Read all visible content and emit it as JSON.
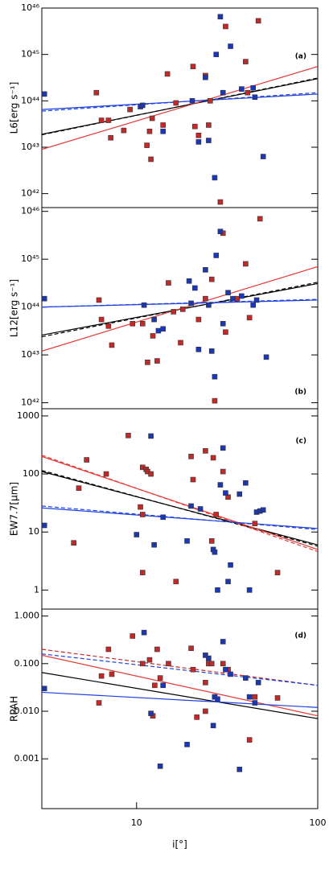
{
  "chart_data": [
    {
      "type": "scatter",
      "label": "(a)",
      "ylabel": "L6[erg s⁻¹]",
      "log_y": true,
      "log_x": true,
      "xlim": [
        3,
        100
      ],
      "ylim": [
        5e+41,
        1e+46
      ],
      "yticks": [
        {
          "value": 1e+42,
          "label": "10⁴²"
        },
        {
          "value": 1e+43,
          "label": "10⁴³"
        },
        {
          "value": 1e+44,
          "label": "10⁴⁴"
        },
        {
          "value": 1e+45,
          "label": "10⁴⁵"
        },
        {
          "value": 1e+46,
          "label": "10⁴⁶"
        }
      ],
      "series": [
        {
          "color": "#c62828",
          "x": [
            6.0,
            6.4,
            7.0,
            7.2,
            8.5,
            9.2,
            11.4,
            11.8,
            12.0,
            12.2,
            14.0,
            14.8,
            16.5,
            20.5,
            21,
            22,
            24,
            25,
            25.5,
            29,
            31,
            40,
            41,
            47
          ],
          "values": [
            1.5e+44,
            3.8e+43,
            3.8e+43,
            1.6e+43,
            2.3e+43,
            6.5e+43,
            1.1e+43,
            2.2e+43,
            5.5e+42,
            4.2e+43,
            3e+43,
            3.8e+44,
            9e+43,
            5.5e+44,
            2.8e+43,
            1.8e+43,
            3.5e+44,
            3e+43,
            1e+44,
            6.6e+41,
            4e+45,
            7e+44,
            1.5e+44,
            5.3e+45
          ]
        },
        {
          "color": "#1a37b8",
          "x": [
            3.1,
            10.5,
            10.8,
            14,
            20.3,
            22,
            24,
            25,
            27,
            27.5,
            29,
            30,
            33,
            38,
            44,
            45,
            50
          ],
          "values": [
            1.4e+44,
            7.5e+43,
            8e+43,
            2.2e+43,
            1e+44,
            1.3e+43,
            3.2e+44,
            1.4e+43,
            2.2e+42,
            1e+45,
            6.5e+45,
            1.5e+44,
            1.5e+45,
            1.8e+44,
            1.9e+44,
            1.2e+44,
            6.3e+42
          ]
        }
      ],
      "lines": [
        {
          "color": "#000000",
          "dash": false,
          "x": [
            3,
            100
          ],
          "values": [
            1.9e+43,
            3e+44
          ]
        },
        {
          "color": "#000000",
          "dash": true,
          "x": [
            3,
            100
          ],
          "values": [
            1.85e+43,
            3.1e+44
          ]
        },
        {
          "color": "#e53935",
          "dash": false,
          "x": [
            3,
            100
          ],
          "values": [
            9e+42,
            5.5e+44
          ]
        },
        {
          "color": "#1e40e0",
          "dash": true,
          "x": [
            3,
            100
          ],
          "values": [
            6e+43,
            1.5e+44
          ]
        },
        {
          "color": "#1e40e0",
          "dash": false,
          "x": [
            3,
            100
          ],
          "values": [
            6.5e+43,
            1.4e+44
          ]
        }
      ]
    },
    {
      "type": "scatter",
      "label": "(b)",
      "ylabel": "L12[erg s⁻¹]",
      "log_y": true,
      "log_x": true,
      "xlim": [
        3,
        100
      ],
      "ylim": [
        7.5e+41,
        1.2e+46
      ],
      "yticks": [
        {
          "value": 1e+42,
          "label": "10⁴²"
        },
        {
          "value": 1e+43,
          "label": "10⁴³"
        },
        {
          "value": 1e+44,
          "label": "10⁴⁴"
        },
        {
          "value": 1e+45,
          "label": "10⁴⁵"
        },
        {
          "value": 1e+46,
          "label": "10⁴⁶"
        }
      ],
      "series": [
        {
          "color": "#c62828",
          "x": [
            6.2,
            6.4,
            7,
            7.3,
            9.5,
            10.8,
            11.5,
            12.3,
            13,
            15,
            16,
            17.5,
            18,
            22,
            24,
            26,
            27,
            30,
            31,
            36,
            40,
            42,
            48
          ],
          "values": [
            1.4e+44,
            5.5e+43,
            4e+43,
            1.6e+43,
            4.5e+43,
            4.5e+43,
            7e+42,
            2.5e+43,
            7.5e+42,
            3.2e+44,
            8e+43,
            1.8e+43,
            9e+43,
            5.5e+43,
            1.5e+44,
            3.8e+44,
            1.1e+42,
            3.5e+45,
            3e+43,
            1.5e+44,
            8e+44,
            6e+43,
            7e+45
          ]
        },
        {
          "color": "#1a37b8",
          "x": [
            3.1,
            11,
            12.5,
            13.2,
            14,
            19.5,
            20,
            21,
            22,
            24,
            25,
            26,
            27,
            27.5,
            29,
            30,
            32,
            34,
            38,
            44,
            46,
            52
          ],
          "values": [
            1.5e+44,
            1.1e+44,
            5.5e+43,
            3.2e+43,
            3.5e+43,
            3.5e+44,
            1.2e+44,
            2.5e+44,
            1.3e+43,
            6e+44,
            1.1e+44,
            1.2e+43,
            3.5e+42,
            1.2e+45,
            3.8e+45,
            4.5e+43,
            2e+44,
            1.5e+44,
            1.7e+44,
            1.1e+44,
            1.4e+44,
            9e+42
          ]
        }
      ],
      "lines": [
        {
          "color": "#000000",
          "dash": false,
          "x": [
            3,
            100
          ],
          "values": [
            2.6e+43,
            3.1e+44
          ]
        },
        {
          "color": "#000000",
          "dash": true,
          "x": [
            3,
            100
          ],
          "values": [
            2.4e+43,
            3.3e+44
          ]
        },
        {
          "color": "#e53935",
          "dash": false,
          "x": [
            3,
            100
          ],
          "values": [
            1.2e+43,
            7e+44
          ]
        },
        {
          "color": "#1e40e0",
          "dash": true,
          "x": [
            3,
            100
          ],
          "values": [
            1e+44,
            1.45e+44
          ]
        },
        {
          "color": "#1e40e0",
          "dash": false,
          "x": [
            3,
            100
          ],
          "values": [
            1e+44,
            1.4e+44
          ]
        }
      ]
    },
    {
      "type": "scatter",
      "label": "(c)",
      "ylabel": "EW7.7[μm]",
      "log_y": true,
      "log_x": true,
      "xlim": [
        3,
        100
      ],
      "ylim": [
        0.47,
        1330
      ],
      "yticks": [
        1,
        10,
        100,
        1000
      ],
      "series": [
        {
          "color": "#c62828",
          "x": [
            4.5,
            4.8,
            5.3,
            6.8,
            9.0,
            10.5,
            10.8,
            10.8,
            10.8,
            11.3,
            11.5,
            12,
            16.5,
            20,
            20.5,
            24,
            26,
            26.5,
            27.5,
            30,
            32,
            45,
            60
          ],
          "values": [
            6.5,
            57,
            175,
            100,
            460,
            27,
            130,
            20,
            2,
            120,
            110,
            100,
            1.4,
            200,
            80,
            250,
            7,
            190,
            20,
            110,
            40,
            14,
            2
          ]
        },
        {
          "color": "#1a37b8",
          "x": [
            3.1,
            10,
            12,
            12.5,
            14,
            19,
            20,
            22.5,
            26.5,
            27,
            28,
            29,
            30,
            31,
            32,
            33,
            37,
            40,
            42,
            46,
            48,
            50
          ],
          "values": [
            13,
            9,
            450,
            6,
            18,
            7,
            28,
            25,
            5,
            4.5,
            1,
            65,
            280,
            47,
            1.4,
            2.7,
            45,
            70,
            1,
            22,
            23,
            24
          ]
        }
      ],
      "lines": [
        {
          "color": "#000000",
          "dash": false,
          "x": [
            3,
            100
          ],
          "values": [
            110,
            6
          ]
        },
        {
          "color": "#000000",
          "dash": true,
          "x": [
            3,
            100
          ],
          "values": [
            115,
            5.7
          ]
        },
        {
          "color": "#e53935",
          "dash": false,
          "x": [
            3,
            100
          ],
          "values": [
            200,
            5
          ]
        },
        {
          "color": "#e53935",
          "dash": true,
          "x": [
            3,
            100
          ],
          "values": [
            210,
            4.6
          ]
        },
        {
          "color": "#1e40e0",
          "dash": true,
          "x": [
            3,
            100
          ],
          "values": [
            28,
            11
          ]
        },
        {
          "color": "#1e40e0",
          "dash": false,
          "x": [
            3,
            100
          ],
          "values": [
            26,
            11.5
          ]
        }
      ]
    },
    {
      "type": "scatter",
      "label": "(d)",
      "ylabel": "RPAH",
      "xlabel": "i[°]",
      "log_y": true,
      "log_x": true,
      "xlim": [
        3,
        100
      ],
      "ylim": [
        9e-05,
        1.4
      ],
      "xticks": [
        10,
        100
      ],
      "yticks": [
        {
          "value": 0.001,
          "label": "0.001"
        },
        {
          "value": 0.01,
          "label": "0.010"
        },
        {
          "value": 0.1,
          "label": "0.100"
        },
        {
          "value": 1,
          "label": "1.000"
        }
      ],
      "series": [
        {
          "color": "#c62828",
          "x": [
            6.2,
            6.4,
            7,
            7.3,
            9.5,
            10.8,
            11.8,
            12.3,
            12.6,
            13,
            13.5,
            15,
            20,
            20.5,
            21.5,
            24,
            24,
            25,
            26,
            27,
            30,
            32,
            42,
            45,
            60
          ],
          "values": [
            0.015,
            0.055,
            0.2,
            0.06,
            0.38,
            0.1,
            0.12,
            0.008,
            0.035,
            0.2,
            0.05,
            0.1,
            0.21,
            0.075,
            0.0075,
            0.01,
            0.04,
            0.1,
            0.1,
            0.02,
            0.1,
            0.075,
            0.0025,
            0.02,
            0.019
          ]
        },
        {
          "color": "#1a37b8",
          "x": [
            3.1,
            11,
            12,
            13.5,
            14,
            19,
            24,
            25,
            26.5,
            27,
            28,
            30,
            31,
            33,
            37,
            40,
            42,
            45,
            47
          ],
          "values": [
            0.03,
            0.45,
            0.009,
            0.0007,
            0.035,
            0.002,
            0.15,
            0.13,
            0.005,
            0.02,
            0.018,
            0.29,
            0.075,
            0.06,
            0.0006,
            0.05,
            0.02,
            0.015,
            0.04
          ]
        }
      ],
      "lines": [
        {
          "color": "#c62828",
          "dash": true,
          "x": [
            3,
            100
          ],
          "values": [
            0.2,
            0.035
          ]
        },
        {
          "color": "#1e40e0",
          "dash": true,
          "x": [
            3,
            100
          ],
          "values": [
            0.16,
            0.035
          ]
        },
        {
          "color": "#e53935",
          "dash": false,
          "x": [
            3,
            100
          ],
          "values": [
            0.15,
            0.008
          ]
        },
        {
          "color": "#000000",
          "dash": false,
          "x": [
            3,
            100
          ],
          "values": [
            0.065,
            0.007
          ]
        },
        {
          "color": "#1e40e0",
          "dash": false,
          "x": [
            3,
            100
          ],
          "values": [
            0.025,
            0.012
          ]
        }
      ]
    }
  ]
}
